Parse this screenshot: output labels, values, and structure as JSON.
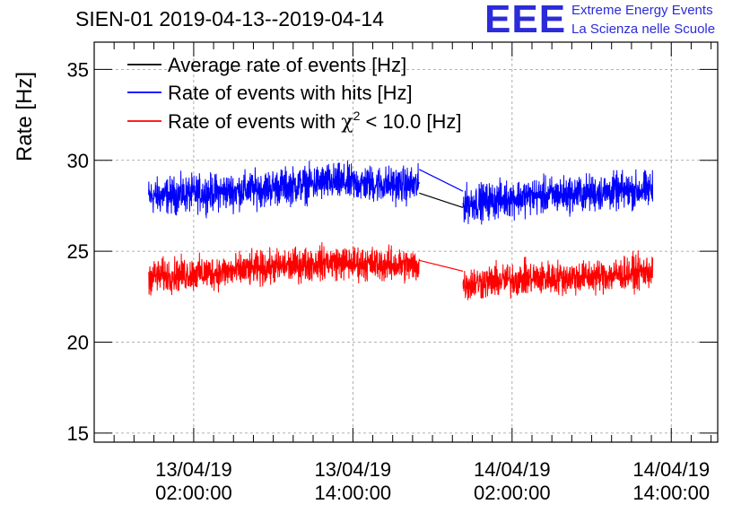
{
  "header": {
    "title": "SIEN-01 2019-04-13--2019-04-14",
    "logo_text": "EEE",
    "logo_line1": "Extreme Energy Events",
    "logo_line2": "La Scienza nelle Scuole"
  },
  "chart_data": {
    "type": "line",
    "title": "SIEN-01 2019-04-13--2019-04-14",
    "xlabel": "",
    "ylabel": "Rate [Hz]",
    "ylim": [
      14.5,
      36.5
    ],
    "yticks": [
      15,
      20,
      25,
      30,
      35
    ],
    "xlim_hours": [
      -7.5,
      39.5
    ],
    "xticks": [
      {
        "hours": 0,
        "line1": "13/04/19",
        "line2": "02:00:00"
      },
      {
        "hours": 12,
        "line1": "13/04/19",
        "line2": "14:00:00"
      },
      {
        "hours": 24,
        "line1": "14/04/19",
        "line2": "02:00:00"
      },
      {
        "hours": 36,
        "line1": "14/04/19",
        "line2": "14:00:00"
      }
    ],
    "x_unit": "hours since 13/04/19 02:00:00",
    "grid": true,
    "legend_position": "top-left",
    "segments": [
      {
        "start_hour": -3.4,
        "end_hour": 17.0
      },
      {
        "start_hour": 20.3,
        "end_hour": 34.6
      }
    ],
    "series": [
      {
        "name": "Rate of events with hits [Hz]",
        "color": "#0000ff",
        "mean": [
          28.0,
          28.3,
          28.8,
          28.6,
          27.6,
          28.0,
          28.2,
          28.4
        ],
        "x": [
          -3.4,
          3,
          10,
          17.0,
          20.3,
          25,
          30,
          34.6
        ],
        "spread": 0.7
      },
      {
        "name": "Rate of events with chi2 < 10.0 [Hz]",
        "color": "#ff0000",
        "mean": [
          23.6,
          23.9,
          24.4,
          24.2,
          23.2,
          23.5,
          23.6,
          23.9
        ],
        "x": [
          -3.4,
          3,
          10,
          17.0,
          20.3,
          25,
          30,
          34.6
        ],
        "spread": 0.65
      },
      {
        "name": "Average rate of events [Hz]",
        "color": "#000000",
        "x": [
          17.0,
          20.3
        ],
        "values": [
          28.2,
          27.4
        ]
      }
    ],
    "legend": [
      {
        "label": "Average rate of events [Hz]",
        "color": "#000000"
      },
      {
        "label": "Rate of events with hits [Hz]",
        "color": "#0000ff"
      },
      {
        "label_pre": "Rate of events with ",
        "label_sym": "χ",
        "label_sup": "2",
        "label_post": " < 10.0 [Hz]",
        "color": "#ff0000"
      }
    ]
  }
}
